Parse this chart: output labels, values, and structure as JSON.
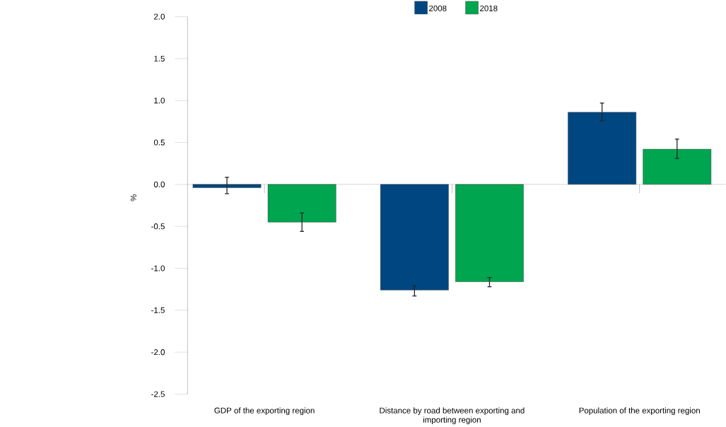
{
  "chart_data": {
    "type": "bar",
    "categories": [
      "GDP of the exporting region",
      "Distance by road between exporting and importing region",
      "Population of the exporting region"
    ],
    "ylabel": "%",
    "ylim": [
      -2.5,
      2.0
    ],
    "yticks": [
      {
        "value": 2,
        "label": "2.0"
      },
      {
        "value": 1.5,
        "label": "1.5"
      },
      {
        "value": 1,
        "label": "1.0"
      },
      {
        "value": 0.5,
        "label": "0.5"
      },
      {
        "value": 0,
        "label": "0.0"
      },
      {
        "value": -0.5,
        "label": "-0.5"
      },
      {
        "value": -1,
        "label": "-1.0"
      },
      {
        "value": -1.5,
        "label": "-1.5"
      },
      {
        "value": -2,
        "label": "-2.0"
      },
      {
        "value": -2.5,
        "label": "-2.5"
      }
    ],
    "legend": "top",
    "series": [
      {
        "name": "2008",
        "color": "#004680",
        "values": [
          -0.04,
          -1.26,
          0.86
        ],
        "errors": [
          [
            -0.11,
            0.085
          ],
          [
            -1.33,
            -1.21
          ],
          [
            0.76,
            0.97
          ]
        ]
      },
      {
        "name": "2018",
        "color": "#00a54f",
        "values": [
          -0.45,
          -1.16,
          0.42
        ],
        "errors": [
          [
            -0.56,
            -0.34
          ],
          [
            -1.22,
            -1.11
          ],
          [
            0.31,
            0.54
          ]
        ]
      }
    ]
  }
}
